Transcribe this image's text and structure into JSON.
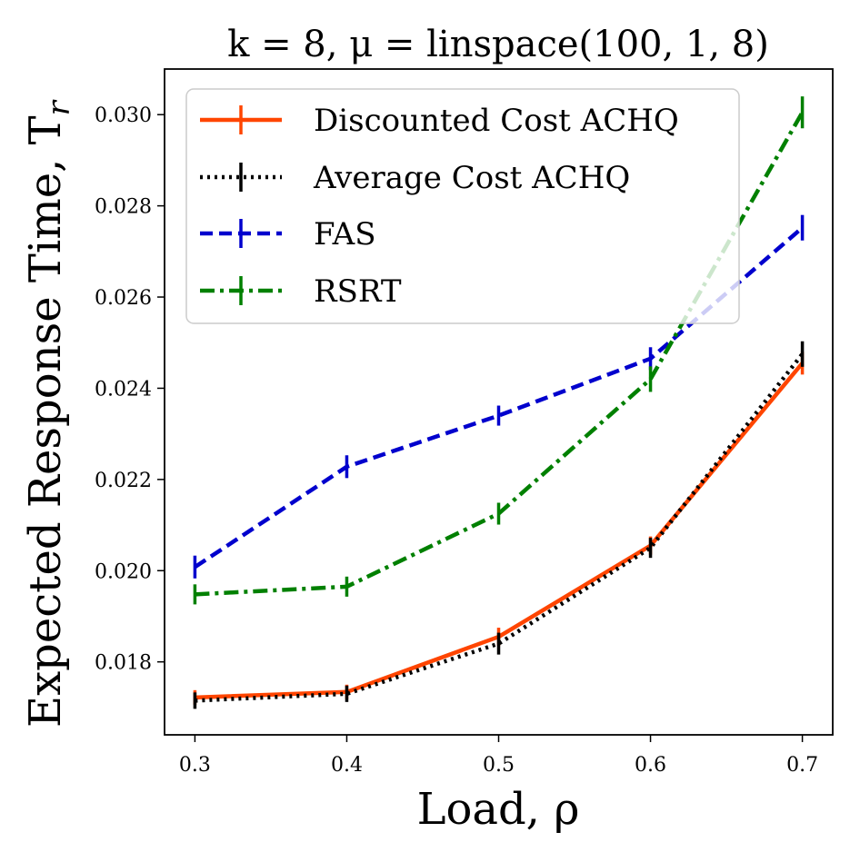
{
  "chart_data": {
    "type": "line",
    "title": "k = 8, μ = linspace(100, 1, 8)",
    "xlabel": "Load, ρ",
    "ylabel": "Expected Response Time, T",
    "ylabel_subscript": "r",
    "x": [
      0.3,
      0.4,
      0.5,
      0.6,
      0.7
    ],
    "x_tick_labels": [
      "0.3",
      "0.4",
      "0.5",
      "0.6",
      "0.7"
    ],
    "y_ticks": [
      0.018,
      0.02,
      0.022,
      0.024,
      0.026,
      0.028,
      0.03
    ],
    "y_tick_labels": [
      "0.018",
      "0.020",
      "0.022",
      "0.024",
      "0.026",
      "0.028",
      "0.030"
    ],
    "xlim": [
      0.28,
      0.72
    ],
    "ylim": [
      0.0164,
      0.031
    ],
    "legend_position": "upper-left",
    "series": [
      {
        "name": "Discounted Cost ACHQ",
        "color": "#ff4500",
        "style": "solid",
        "values": [
          0.01722,
          0.01734,
          0.01855,
          0.02055,
          0.02455
        ],
        "errors": [
          6e-05,
          6e-05,
          0.0001,
          0.0001,
          0.00015
        ]
      },
      {
        "name": "Average Cost ACHQ",
        "color": "#000000",
        "style": "dotted",
        "values": [
          0.01715,
          0.0173,
          0.0184,
          0.0205,
          0.02475
        ],
        "errors": [
          8e-05,
          8e-05,
          0.00014,
          0.00012,
          0.00018
        ]
      },
      {
        "name": "FAS",
        "color": "#0000cd",
        "style": "dashed",
        "values": [
          0.02008,
          0.02228,
          0.0234,
          0.02465,
          0.02752
        ],
        "errors": [
          0.00015,
          0.00015,
          0.00012,
          0.00015,
          0.00018
        ]
      },
      {
        "name": "RSRT",
        "color": "#008000",
        "style": "dashdot",
        "values": [
          0.01948,
          0.01965,
          0.02125,
          0.0242,
          0.03005
        ],
        "errors": [
          0.00012,
          0.00012,
          0.00014,
          0.00018,
          0.00025
        ]
      }
    ]
  }
}
